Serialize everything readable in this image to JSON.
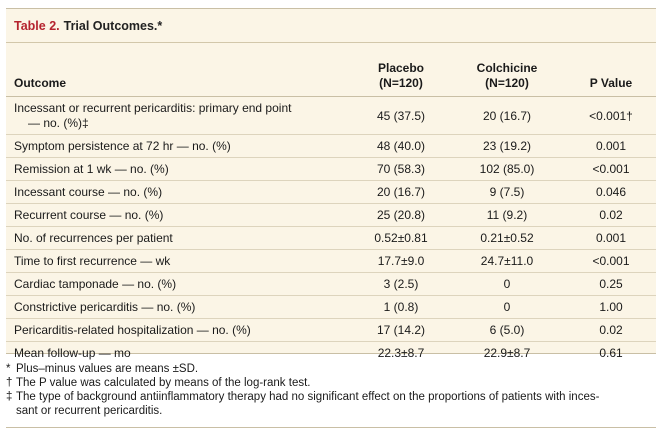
{
  "title": {
    "number": "Table 2.",
    "text": "Trial Outcomes.*"
  },
  "columns": {
    "outcome": "Outcome",
    "placebo_line1": "Placebo",
    "placebo_line2": "(N=120)",
    "colchicine_line1": "Colchicine",
    "colchicine_line2": "(N=120)",
    "pvalue": "P Value"
  },
  "rows": [
    {
      "outcome_line1": "Incessant or recurrent pericarditis: primary end point",
      "outcome_line2": "— no. (%)‡",
      "placebo": "45 (37.5)",
      "colchicine": "20 (16.7)",
      "p": "<0.001†"
    },
    {
      "outcome_line1": "Symptom persistence at 72 hr — no. (%)",
      "placebo": "48 (40.0)",
      "colchicine": "23 (19.2)",
      "p": "0.001"
    },
    {
      "outcome_line1": "Remission at 1 wk — no. (%)",
      "placebo": "70 (58.3)",
      "colchicine": "102 (85.0)",
      "p": "<0.001"
    },
    {
      "outcome_line1": "Incessant course — no. (%)",
      "placebo": "20 (16.7)",
      "colchicine": "9 (7.5)",
      "p": "0.046"
    },
    {
      "outcome_line1": "Recurrent course — no. (%)",
      "placebo": "25 (20.8)",
      "colchicine": "11 (9.2)",
      "p": "0.02"
    },
    {
      "outcome_line1": "No. of recurrences per patient",
      "placebo": "0.52±0.81",
      "colchicine": "0.21±0.52",
      "p": "0.001"
    },
    {
      "outcome_line1": "Time to first recurrence — wk",
      "placebo": "17.7±9.0",
      "colchicine": "24.7±11.0",
      "p": "<0.001"
    },
    {
      "outcome_line1": "Cardiac tamponade — no. (%)",
      "placebo": "3 (2.5)",
      "colchicine": "0",
      "p": "0.25"
    },
    {
      "outcome_line1": "Constrictive pericarditis — no. (%)",
      "placebo": "1 (0.8)",
      "colchicine": "0",
      "p": "1.00"
    },
    {
      "outcome_line1": "Pericarditis-related hospitalization — no. (%)",
      "placebo": "17 (14.2)",
      "colchicine": "6 (5.0)",
      "p": "0.02"
    },
    {
      "outcome_line1": "Mean follow-up — mo",
      "placebo": "22.3±8.7",
      "colchicine": "22.9±8.7",
      "p": "0.61"
    }
  ],
  "footnotes": [
    {
      "symbol": "*",
      "text": "Plus–minus values are means ±SD."
    },
    {
      "symbol": "†",
      "text": "The P value was calculated by means of the log-rank test."
    },
    {
      "symbol": "‡",
      "text": "The type of background antiinflammatory therapy had no significant effect on the proportions of patients with inces-",
      "text_line2": "sant or recurrent pericarditis."
    }
  ],
  "colors": {
    "background": "#fbf5e6",
    "title_accent": "#b5232e",
    "rule": "#c9bfa5"
  }
}
